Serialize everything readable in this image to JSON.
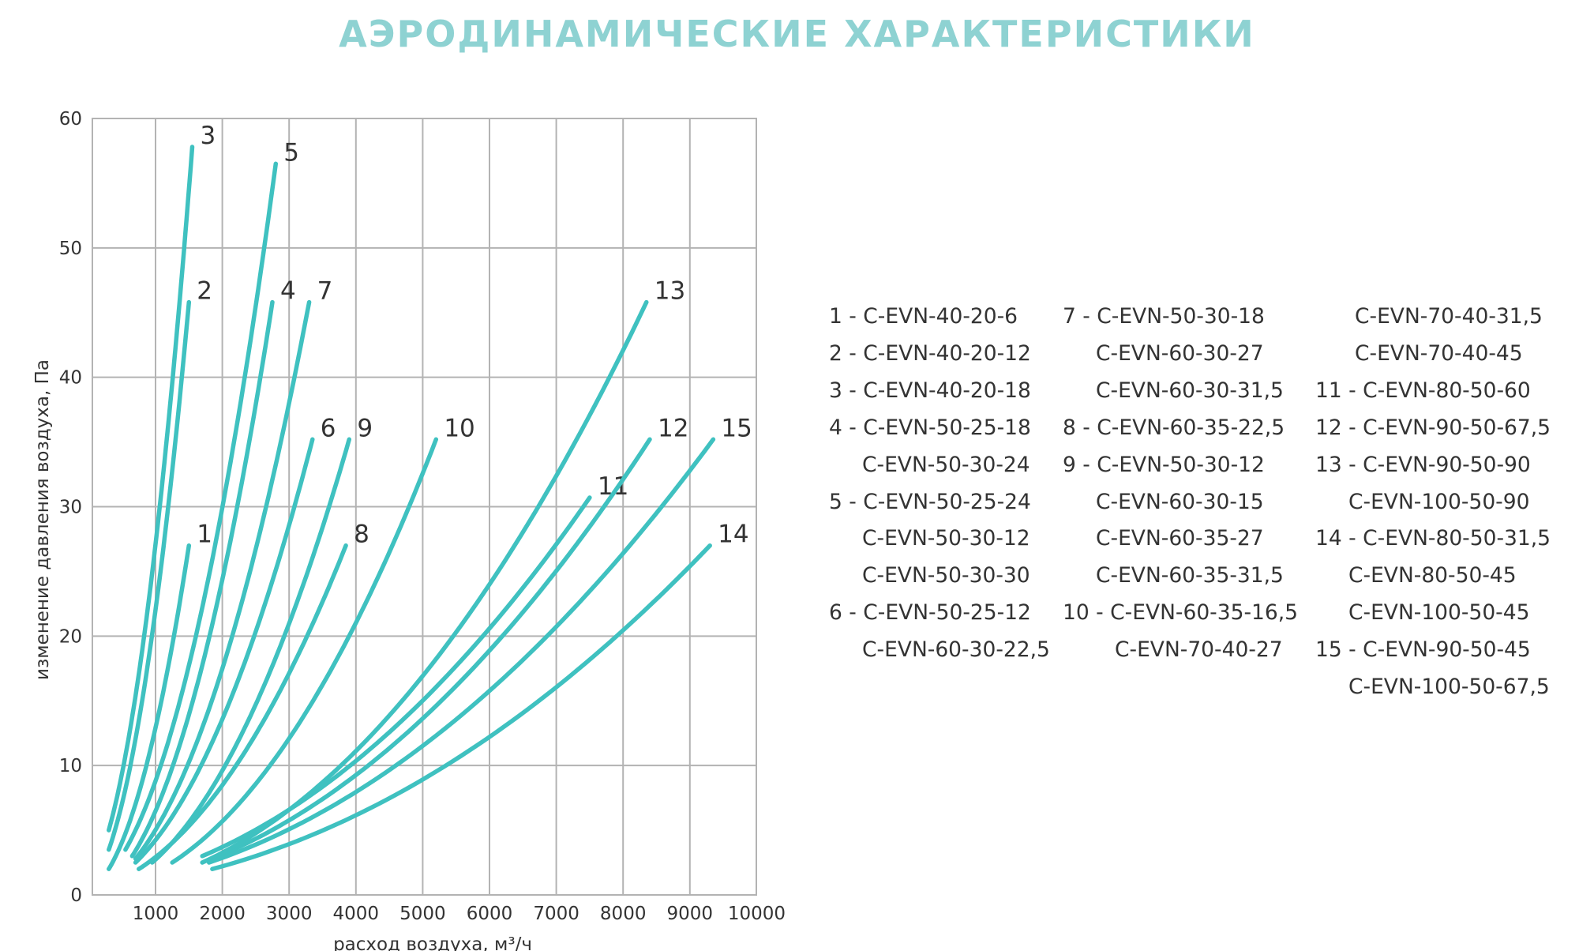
{
  "title": "АЭРОДИНАМИЧЕСКИЕ ХАРАКТЕРИСТИКИ",
  "colors": {
    "title": "#8ed2d2",
    "curve": "#3fc1c0",
    "grid": "#b3b3b3"
  },
  "chart_data": {
    "type": "line",
    "xlabel": "расход воздуха, м³/ч",
    "ylabel": "изменение давления воздуха, Па",
    "xlim": [
      0,
      10000
    ],
    "ylim": [
      0,
      60
    ],
    "xticks": [
      1000,
      2000,
      3000,
      4000,
      5000,
      6000,
      7000,
      8000,
      9000,
      10000
    ],
    "yticks": [
      0,
      10,
      20,
      30,
      40,
      50,
      60
    ],
    "grid": true,
    "series": [
      {
        "name": "1",
        "points": [
          [
            300,
            2
          ],
          [
            1500,
            27
          ]
        ]
      },
      {
        "name": "2",
        "points": [
          [
            300,
            3.5
          ],
          [
            1500,
            45.8
          ]
        ]
      },
      {
        "name": "3",
        "points": [
          [
            300,
            5
          ],
          [
            1550,
            57.8
          ]
        ]
      },
      {
        "name": "4",
        "points": [
          [
            650,
            3
          ],
          [
            2750,
            45.8
          ]
        ]
      },
      {
        "name": "5",
        "points": [
          [
            550,
            3.5
          ],
          [
            2800,
            56.5
          ]
        ]
      },
      {
        "name": "6",
        "points": [
          [
            700,
            2.5
          ],
          [
            3350,
            35.2
          ]
        ]
      },
      {
        "name": "7",
        "points": [
          [
            700,
            2.8
          ],
          [
            3300,
            45.8
          ]
        ]
      },
      {
        "name": "8",
        "points": [
          [
            750,
            2
          ],
          [
            3850,
            27
          ]
        ]
      },
      {
        "name": "9",
        "points": [
          [
            950,
            2.5
          ],
          [
            3900,
            35.2
          ]
        ]
      },
      {
        "name": "10",
        "points": [
          [
            1250,
            2.5
          ],
          [
            5200,
            35.2
          ]
        ]
      },
      {
        "name": "11",
        "points": [
          [
            1700,
            3
          ],
          [
            7500,
            30.7
          ]
        ]
      },
      {
        "name": "12",
        "points": [
          [
            1850,
            2.8
          ],
          [
            8400,
            35.2
          ]
        ]
      },
      {
        "name": "13",
        "points": [
          [
            1700,
            2.5
          ],
          [
            8350,
            45.8
          ]
        ]
      },
      {
        "name": "14",
        "points": [
          [
            1850,
            2
          ],
          [
            9300,
            27
          ]
        ]
      },
      {
        "name": "15",
        "points": [
          [
            1800,
            2.5
          ],
          [
            9350,
            35.2
          ]
        ]
      }
    ],
    "legend": [
      [
        "1 - C-EVN-40-20-6",
        "2 - C-EVN-40-20-12",
        "3 - C-EVN-40-20-18",
        "4 - C-EVN-50-25-18",
        "C-EVN-50-30-24",
        "5 - C-EVN-50-25-24",
        "C-EVN-50-30-12",
        "C-EVN-50-30-30",
        "6 - C-EVN-50-25-12",
        "C-EVN-60-30-22,5"
      ],
      [
        "7 - C-EVN-50-30-18",
        "C-EVN-60-30-27",
        "C-EVN-60-30-31,5",
        "8 - C-EVN-60-35-22,5",
        "9 - C-EVN-50-30-12",
        "C-EVN-60-30-15",
        "C-EVN-60-35-27",
        "C-EVN-60-35-31,5",
        "10 - C-EVN-60-35-16,5",
        "C-EVN-70-40-27"
      ],
      [
        "C-EVN-70-40-31,5",
        "C-EVN-70-40-45",
        "11 - C-EVN-80-50-60",
        "12 - C-EVN-90-50-67,5",
        "13 - C-EVN-90-50-90",
        "C-EVN-100-50-90",
        "14 - C-EVN-80-50-31,5",
        "C-EVN-80-50-45",
        "C-EVN-100-50-45",
        "15 - C-EVN-90-50-45",
        "C-EVN-100-50-67,5"
      ]
    ]
  }
}
